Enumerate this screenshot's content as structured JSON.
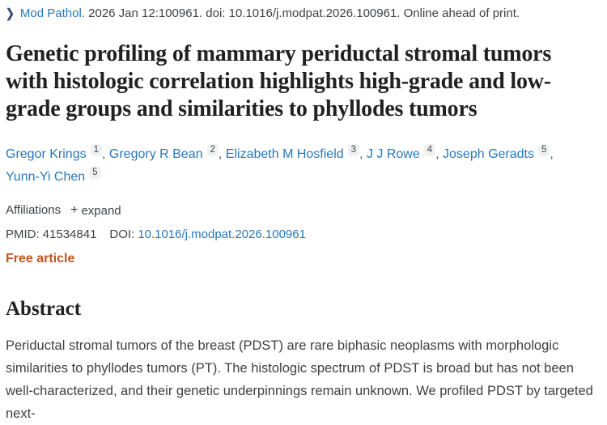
{
  "journal_bar": {
    "chevron": "❯",
    "journal": "Mod Pathol",
    "citation": ". 2026 Jan 12:100961. doi: 10.1016/j.modpat.2026.100961. Online ahead of print."
  },
  "title": "Genetic profiling of mammary periductal stromal tumors with histologic correlation highlights high-grade and low-grade groups and similarities to phyllodes tumors",
  "authors": [
    {
      "name": "Gregor Krings",
      "sup": "1"
    },
    {
      "name": "Gregory R Bean",
      "sup": "2"
    },
    {
      "name": "Elizabeth M Hosfield",
      "sup": "3"
    },
    {
      "name": "J J Rowe",
      "sup": "4"
    },
    {
      "name": "Joseph Geradts",
      "sup": "5"
    },
    {
      "name": "Yunn-Yi Chen",
      "sup": "5"
    }
  ],
  "affiliations": {
    "label": "Affiliations",
    "plus": "+",
    "expand_label": "expand"
  },
  "identifiers": {
    "pmid_label": "PMID:",
    "pmid": "41534841",
    "doi_label": "DOI:",
    "doi": "10.1016/j.modpat.2026.100961"
  },
  "free_article": "Free article",
  "abstract": {
    "heading": "Abstract",
    "text": "Periductal stromal tumors of the breast (PDST) are rare biphasic neoplasms with morphologic similarities to phyllodes tumors (PT). The histologic spectrum of PDST is broad but has not been well-characterized, and their genetic underpinnings remain unknown. We profiled PDST by targeted next-"
  },
  "colors": {
    "link": "#2977bb",
    "chevron": "#3b5172",
    "free": "#c2561d",
    "title": "#212121",
    "body": "#3e4043",
    "supbg": "#eff1f2",
    "suptext": "#44484b"
  }
}
